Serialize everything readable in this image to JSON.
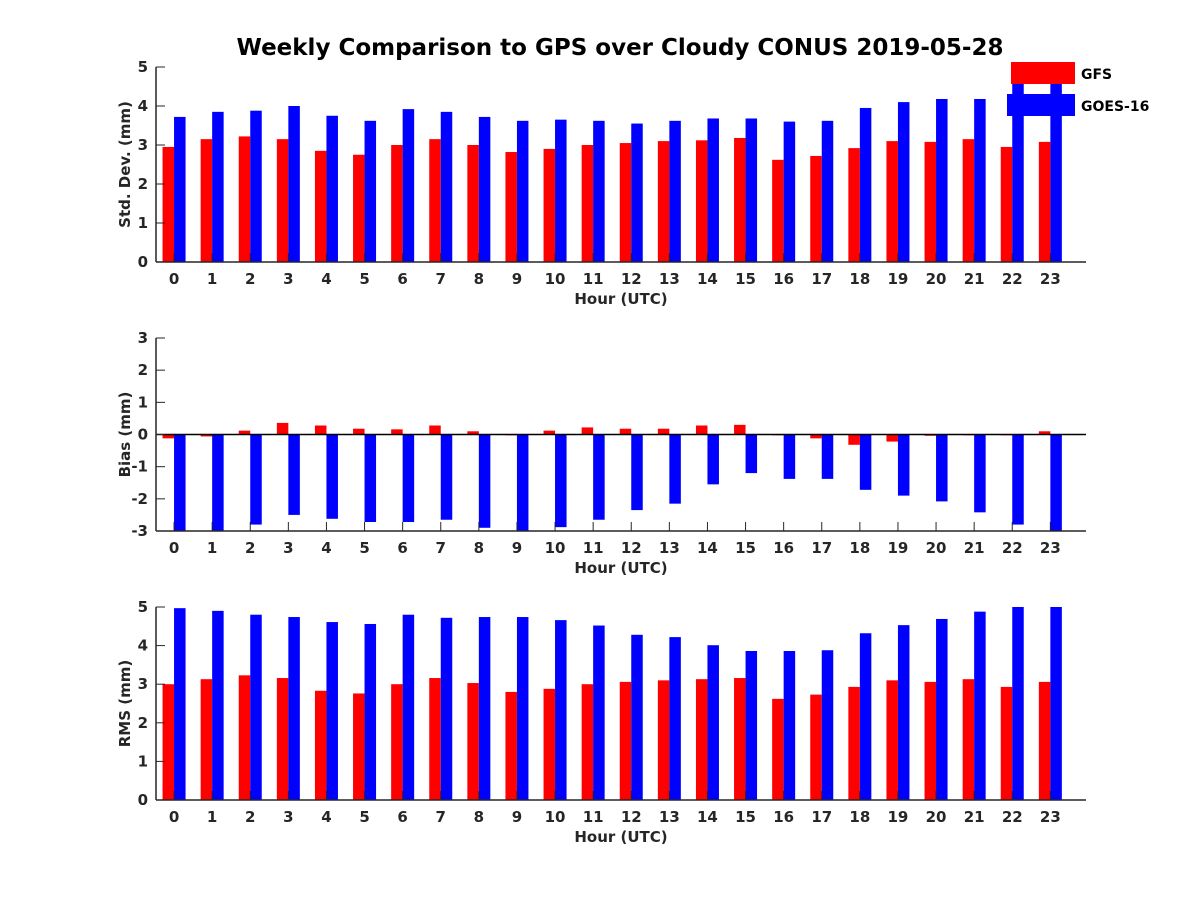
{
  "chart_data": {
    "title": "Weekly Comparison to GPS over Cloudy CONUS 2019-05-28",
    "type": "bar",
    "legend": {
      "placement": "top-right",
      "entries": [
        {
          "name": "GFS",
          "color": "#ff0000"
        },
        {
          "name": "GOES-16",
          "color": "#0000ff"
        }
      ]
    },
    "panels": [
      {
        "type": "bar",
        "xlabel": "Hour (UTC)",
        "ylabel": "Std. Dev. (mm)",
        "ylim": [
          0,
          5
        ],
        "yticks": [
          0,
          1,
          2,
          3,
          4,
          5
        ],
        "categories": [
          "0",
          "1",
          "2",
          "3",
          "4",
          "5",
          "6",
          "7",
          "8",
          "9",
          "10",
          "11",
          "12",
          "13",
          "14",
          "15",
          "16",
          "17",
          "18",
          "19",
          "20",
          "21",
          "22",
          "23"
        ],
        "series": [
          {
            "name": "GFS",
            "values": [
              2.95,
              3.15,
              3.22,
              3.15,
              2.85,
              2.75,
              3.0,
              3.15,
              3.0,
              2.82,
              2.9,
              3.0,
              3.05,
              3.1,
              3.12,
              3.18,
              2.62,
              2.72,
              2.92,
              3.1,
              3.08,
              3.15,
              2.95,
              3.08
            ]
          },
          {
            "name": "GOES-16",
            "values": [
              3.72,
              3.85,
              3.88,
              4.0,
              3.75,
              3.62,
              3.92,
              3.85,
              3.72,
              3.62,
              3.65,
              3.62,
              3.55,
              3.62,
              3.68,
              3.68,
              3.6,
              3.62,
              3.95,
              4.1,
              4.18,
              4.18,
              4.9,
              4.9
            ]
          }
        ]
      },
      {
        "type": "bar",
        "xlabel": "Hour (UTC)",
        "ylabel": "Bias (mm)",
        "ylim": [
          -3,
          3
        ],
        "yticks": [
          -3,
          -2,
          -1,
          0,
          1,
          2,
          3
        ],
        "categories": [
          "0",
          "1",
          "2",
          "3",
          "4",
          "5",
          "6",
          "7",
          "8",
          "9",
          "10",
          "11",
          "12",
          "13",
          "14",
          "15",
          "16",
          "17",
          "18",
          "19",
          "20",
          "21",
          "22",
          "23"
        ],
        "series": [
          {
            "name": "GFS",
            "values": [
              -0.12,
              -0.06,
              0.12,
              0.36,
              0.28,
              0.18,
              0.16,
              0.28,
              0.1,
              0.0,
              0.12,
              0.22,
              0.18,
              0.18,
              0.28,
              0.3,
              0.0,
              -0.12,
              -0.32,
              -0.22,
              -0.04,
              0.0,
              0.0,
              0.1
            ]
          },
          {
            "name": "GOES-16",
            "values": [
              -3.2,
              -3.2,
              -2.8,
              -2.5,
              -2.62,
              -2.72,
              -2.72,
              -2.65,
              -2.9,
              -3.2,
              -2.88,
              -2.65,
              -2.35,
              -2.15,
              -1.55,
              -1.2,
              -1.38,
              -1.38,
              -1.72,
              -1.9,
              -2.08,
              -2.42,
              -2.8,
              -3.2
            ]
          }
        ]
      },
      {
        "type": "bar",
        "xlabel": "Hour (UTC)",
        "ylabel": "RMS (mm)",
        "ylim": [
          0,
          5
        ],
        "yticks": [
          0,
          1,
          2,
          3,
          4,
          5
        ],
        "categories": [
          "0",
          "1",
          "2",
          "3",
          "4",
          "5",
          "6",
          "7",
          "8",
          "9",
          "10",
          "11",
          "12",
          "13",
          "14",
          "15",
          "16",
          "17",
          "18",
          "19",
          "20",
          "21",
          "22",
          "23"
        ],
        "series": [
          {
            "name": "GFS",
            "values": [
              3.0,
              3.13,
              3.23,
              3.16,
              2.83,
              2.76,
              3.0,
              3.16,
              3.03,
              2.8,
              2.88,
              3.0,
              3.06,
              3.1,
              3.13,
              3.16,
              2.62,
              2.73,
              2.93,
              3.1,
              3.06,
              3.13,
              2.93,
              3.06
            ]
          },
          {
            "name": "GOES-16",
            "values": [
              4.97,
              4.9,
              4.8,
              4.74,
              4.61,
              4.56,
              4.8,
              4.72,
              4.74,
              4.74,
              4.66,
              4.52,
              4.28,
              4.22,
              4.01,
              3.86,
              3.86,
              3.88,
              4.32,
              4.53,
              4.69,
              4.88,
              5.0,
              5.0
            ]
          }
        ]
      }
    ]
  }
}
